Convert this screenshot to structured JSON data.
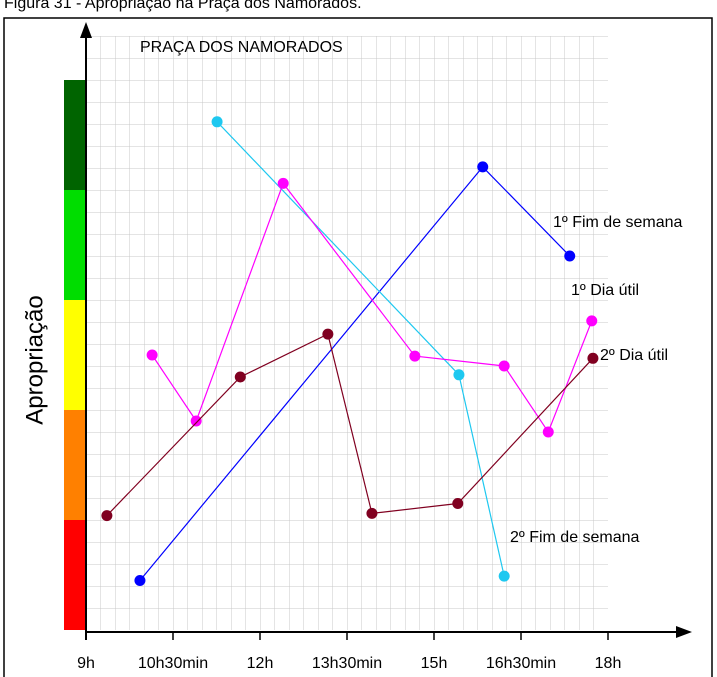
{
  "caption": "Figura 31 - Apropriação na Praça dos Namorados.",
  "chart_data": {
    "type": "line",
    "title": "PRAÇA DOS NAMORADOS",
    "y_label": "Apropriação",
    "xlim": [
      9,
      18
    ],
    "ylim": [
      0,
      5.4
    ],
    "xticks": [
      {
        "value": 9,
        "label": "9h"
      },
      {
        "value": 10.5,
        "label": "10h30min"
      },
      {
        "value": 12,
        "label": "12h"
      },
      {
        "value": 13.5,
        "label": "13h30min"
      },
      {
        "value": 15,
        "label": "15h"
      },
      {
        "value": 16.5,
        "label": "16h30min"
      },
      {
        "value": 18,
        "label": "18h"
      }
    ],
    "series": [
      {
        "name": "1º Fim de semana",
        "color": "#0000ff",
        "x": [
          9.93,
          15.84,
          17.34
        ],
        "values": [
          0.45,
          4.21,
          3.4
        ]
      },
      {
        "name": "2º Fim de semana",
        "color": "#1ec8f0",
        "x": [
          11.26,
          15.43,
          16.21
        ],
        "values": [
          4.62,
          2.32,
          0.49
        ]
      },
      {
        "name": "1º Dia útil",
        "color": "#ff00ff",
        "x": [
          10.14,
          10.9,
          12.4,
          14.67,
          16.21,
          16.97,
          17.72
        ],
        "values": [
          2.5,
          1.9,
          4.06,
          2.49,
          2.4,
          1.8,
          2.81
        ]
      },
      {
        "name": "2º Dia útil",
        "color": "#800020",
        "x": [
          9.36,
          11.66,
          13.17,
          13.93,
          15.41,
          17.74
        ],
        "values": [
          1.04,
          2.3,
          2.69,
          1.06,
          1.15,
          2.47
        ]
      }
    ]
  }
}
